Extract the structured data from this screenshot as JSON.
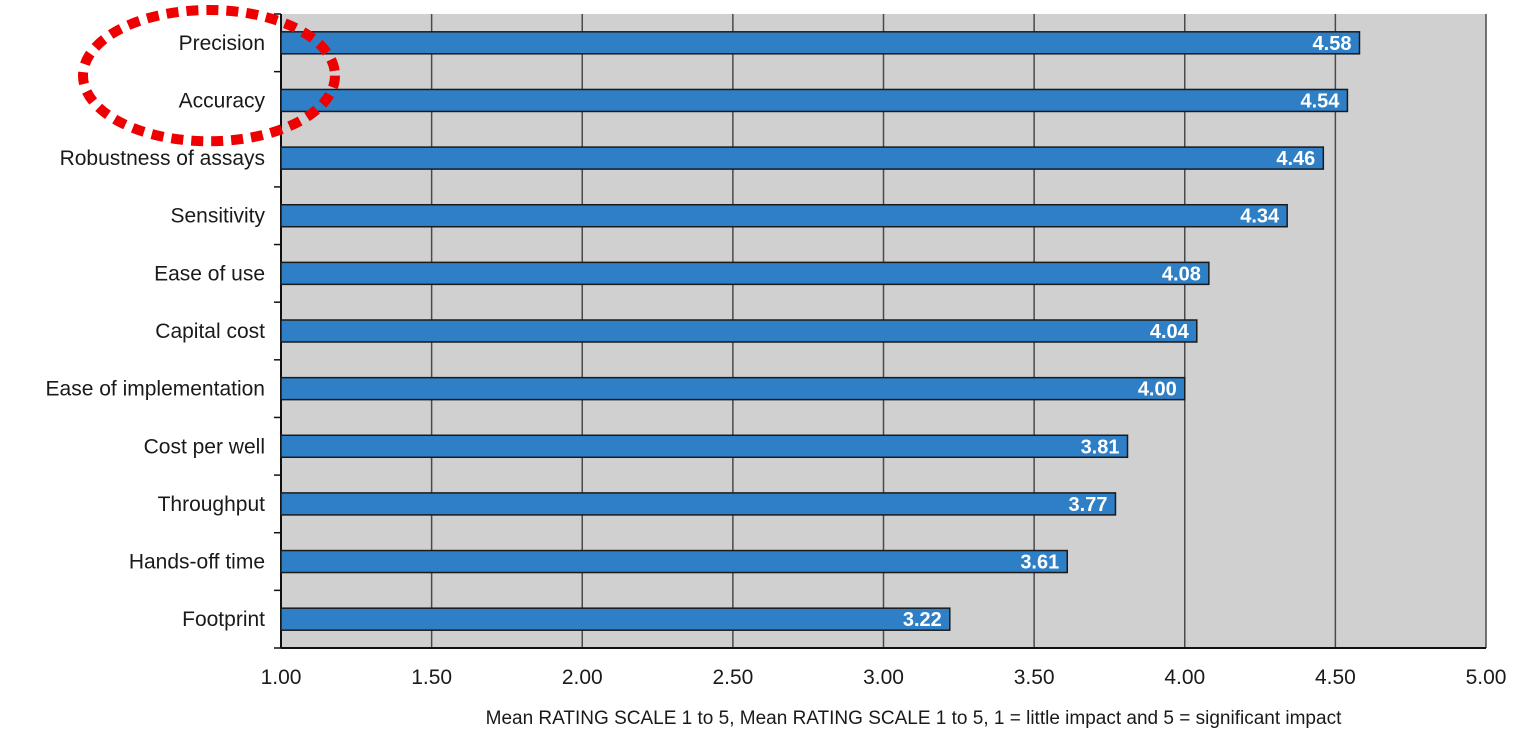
{
  "chart_data": {
    "type": "bar",
    "orientation": "horizontal",
    "categories": [
      "Precision",
      "Accuracy",
      "Robustness of assays",
      "Sensitivity",
      "Ease of use",
      "Capital cost",
      "Ease of implementation",
      "Cost per well",
      "Throughput",
      "Hands-off time",
      "Footprint"
    ],
    "values": [
      4.58,
      4.54,
      4.46,
      4.34,
      4.08,
      4.04,
      4.0,
      3.81,
      3.77,
      3.61,
      3.22
    ],
    "value_labels": [
      "4.58",
      "4.54",
      "4.46",
      "4.34",
      "4.08",
      "4.04",
      "4.00",
      "3.81",
      "3.77",
      "3.61",
      "3.22"
    ],
    "xlim": [
      1.0,
      5.0
    ],
    "x_ticks": [
      "1.00",
      "1.50",
      "2.00",
      "2.50",
      "3.00",
      "3.50",
      "4.00",
      "4.50",
      "5.00"
    ],
    "x_tick_values": [
      1.0,
      1.5,
      2.0,
      2.5,
      3.0,
      3.5,
      4.0,
      4.5,
      5.0
    ],
    "xlabel": "Mean RATING SCALE 1 to 5, Mean RATING SCALE 1 to 5, 1 = little impact and 5 = significant impact",
    "grid": true,
    "highlighted_categories": [
      "Precision",
      "Accuracy"
    ],
    "colors": {
      "bar": "#2e7fc6",
      "bar_edge": "#1a1a1a",
      "plot_background": "#d0d0d0",
      "gridline": "#4a4a4a",
      "highlight": "#ee0000"
    }
  }
}
